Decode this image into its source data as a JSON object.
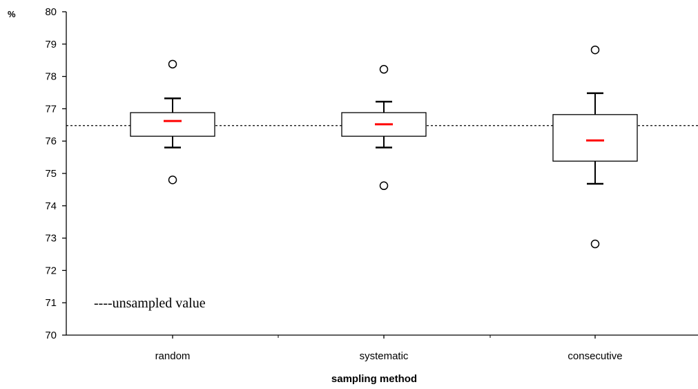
{
  "chart_data": {
    "type": "box",
    "unit_label": "%",
    "xlabel": "sampling method",
    "ylabel": "",
    "ylim": [
      70,
      80
    ],
    "yticks": [
      70,
      71,
      72,
      73,
      74,
      75,
      76,
      77,
      78,
      79,
      80
    ],
    "categories": [
      "random",
      "systematic",
      "consecutive"
    ],
    "boxes": [
      {
        "category": "random",
        "whisker_low": 75.8,
        "q1": 76.15,
        "median": 76.62,
        "q3": 76.88,
        "whisker_high": 77.32,
        "outliers": [
          78.38,
          74.8
        ]
      },
      {
        "category": "systematic",
        "whisker_low": 75.8,
        "q1": 76.15,
        "median": 76.52,
        "q3": 76.88,
        "whisker_high": 77.22,
        "outliers": [
          78.22,
          74.62
        ]
      },
      {
        "category": "consecutive",
        "whisker_low": 74.68,
        "q1": 75.38,
        "median": 76.02,
        "q3": 76.82,
        "whisker_high": 77.48,
        "outliers": [
          78.82,
          72.82
        ]
      }
    ],
    "reference_line": {
      "value": 76.48,
      "style": "dashed"
    },
    "legend": {
      "text": "----unsampled value",
      "placement": "bottom-left"
    },
    "median_color": "#ff0000",
    "grid": false
  }
}
